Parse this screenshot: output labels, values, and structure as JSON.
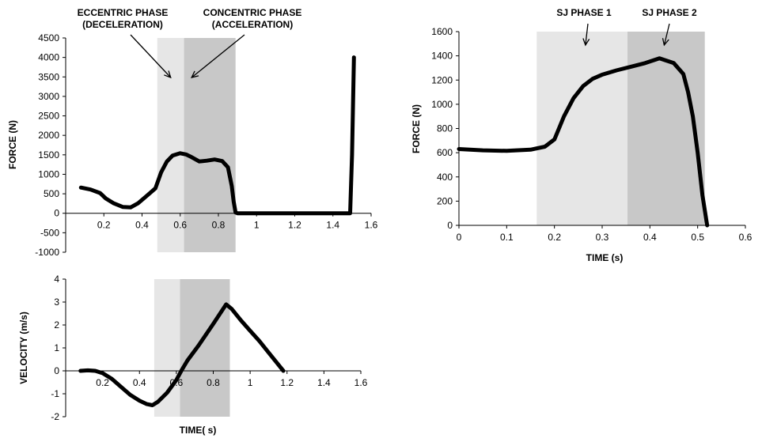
{
  "chart_data": [
    {
      "type": "line",
      "title": "",
      "xlabel": "",
      "ylabel": "FORCE (N)",
      "xlim": [
        0,
        1.6
      ],
      "ylim": [
        -1000,
        4500
      ],
      "xticks": [
        "0.2",
        "0.4",
        "0.6",
        "0.8",
        "1",
        "1.2",
        "1.4",
        "1.6"
      ],
      "xtick_values": [
        0.2,
        0.4,
        0.6,
        0.8,
        1.0,
        1.2,
        1.4,
        1.6
      ],
      "yticks": [
        "4500",
        "4000",
        "3500",
        "3000",
        "2500",
        "2000",
        "1500",
        "1000",
        "500",
        "0",
        "-500",
        "-1000"
      ],
      "ytick_values": [
        4500,
        4000,
        3500,
        3000,
        2500,
        2000,
        1500,
        1000,
        500,
        0,
        -500,
        -1000
      ],
      "grid": false,
      "shaded_regions": [
        {
          "x": [
            0.48,
            0.62
          ],
          "color": "#e6e6e6"
        },
        {
          "x": [
            0.62,
            0.89
          ],
          "color": "#c8c8c8"
        }
      ],
      "annotations": [
        {
          "lines": [
            "ECCENTRIC PHASE",
            "(DECELERATION)"
          ],
          "arrow_to": [
            0.55,
            700
          ]
        },
        {
          "lines": [
            "CONCENTRIC PHASE",
            "(ACCELERATION)"
          ],
          "arrow_to": [
            0.66,
            700
          ]
        }
      ],
      "series": [
        {
          "x": [
            0.08,
            0.13,
            0.18,
            0.21,
            0.25,
            0.3,
            0.34,
            0.38,
            0.43,
            0.47,
            0.5,
            0.53,
            0.56,
            0.6,
            0.63,
            0.66,
            0.7,
            0.74,
            0.78,
            0.82,
            0.85,
            0.87,
            0.88,
            0.89,
            0.9,
            0.95,
            1.1,
            1.3,
            1.45,
            1.49,
            1.5,
            1.51
          ],
          "y": [
            660,
            610,
            520,
            380,
            260,
            160,
            150,
            260,
            470,
            640,
            1050,
            1330,
            1480,
            1540,
            1510,
            1440,
            1330,
            1350,
            1380,
            1340,
            1180,
            700,
            300,
            20,
            0,
            0,
            0,
            0,
            0,
            0,
            1500,
            4000
          ]
        }
      ]
    },
    {
      "type": "line",
      "title": "",
      "xlabel": "TIME( s)",
      "ylabel": "VELOCITY (m/s)",
      "xlim": [
        0,
        1.6
      ],
      "ylim": [
        -2,
        4
      ],
      "xticks": [
        "0.2",
        "0.4",
        "0.6",
        "0.8",
        "1",
        "1.2",
        "1.4",
        "1.6"
      ],
      "xtick_values": [
        0.2,
        0.4,
        0.6,
        0.8,
        1.0,
        1.2,
        1.4,
        1.6
      ],
      "yticks": [
        "4",
        "3",
        "2",
        "1",
        "0",
        "-1",
        "-2"
      ],
      "ytick_values": [
        4,
        3,
        2,
        1,
        0,
        -1,
        -2
      ],
      "grid": false,
      "shaded_regions": [
        {
          "x": [
            0.48,
            0.62
          ],
          "color": "#e6e6e6"
        },
        {
          "x": [
            0.62,
            0.89
          ],
          "color": "#c8c8c8"
        }
      ],
      "series": [
        {
          "x": [
            0.08,
            0.12,
            0.16,
            0.2,
            0.25,
            0.3,
            0.35,
            0.4,
            0.44,
            0.47,
            0.5,
            0.55,
            0.6,
            0.63,
            0.66,
            0.72,
            0.8,
            0.87,
            0.9,
            0.95,
            1.0,
            1.05,
            1.1,
            1.15,
            1.18
          ],
          "y": [
            0,
            0.02,
            0,
            -0.1,
            -0.35,
            -0.7,
            -1.05,
            -1.3,
            -1.45,
            -1.5,
            -1.35,
            -0.95,
            -0.4,
            0.05,
            0.45,
            1.1,
            2.05,
            2.9,
            2.7,
            2.2,
            1.75,
            1.3,
            0.8,
            0.3,
            0
          ]
        }
      ]
    },
    {
      "type": "line",
      "title": "",
      "xlabel": "TIME (s)",
      "ylabel": "FORCE (N)",
      "xlim": [
        0,
        0.6
      ],
      "ylim": [
        0,
        1600
      ],
      "xticks": [
        "0",
        "0.1",
        "0.2",
        "0.3",
        "0.4",
        "0.5",
        "0.6"
      ],
      "xtick_values": [
        0,
        0.1,
        0.2,
        0.3,
        0.4,
        0.5,
        0.6
      ],
      "yticks": [
        "1600",
        "1400",
        "1200",
        "1000",
        "800",
        "600",
        "400",
        "200",
        "0"
      ],
      "ytick_values": [
        1600,
        1400,
        1200,
        1000,
        800,
        600,
        400,
        200,
        0
      ],
      "grid": false,
      "shaded_regions": [
        {
          "x": [
            0.163,
            0.353
          ],
          "color": "#e6e6e6"
        },
        {
          "x": [
            0.353,
            0.515
          ],
          "color": "#c8c8c8"
        }
      ],
      "annotations": [
        {
          "lines": [
            "SJ PHASE 1"
          ],
          "arrow_to": [
            0.265,
            1510
          ]
        },
        {
          "lines": [
            "SJ PHASE 2"
          ],
          "arrow_to": [
            0.43,
            1510
          ]
        }
      ],
      "series": [
        {
          "x": [
            0,
            0.05,
            0.1,
            0.15,
            0.18,
            0.2,
            0.22,
            0.24,
            0.26,
            0.28,
            0.3,
            0.33,
            0.36,
            0.39,
            0.42,
            0.45,
            0.47,
            0.48,
            0.49,
            0.5,
            0.51,
            0.52
          ],
          "y": [
            630,
            620,
            615,
            625,
            650,
            710,
            900,
            1050,
            1150,
            1210,
            1245,
            1280,
            1310,
            1340,
            1380,
            1340,
            1250,
            1100,
            900,
            600,
            250,
            0
          ]
        }
      ]
    }
  ]
}
